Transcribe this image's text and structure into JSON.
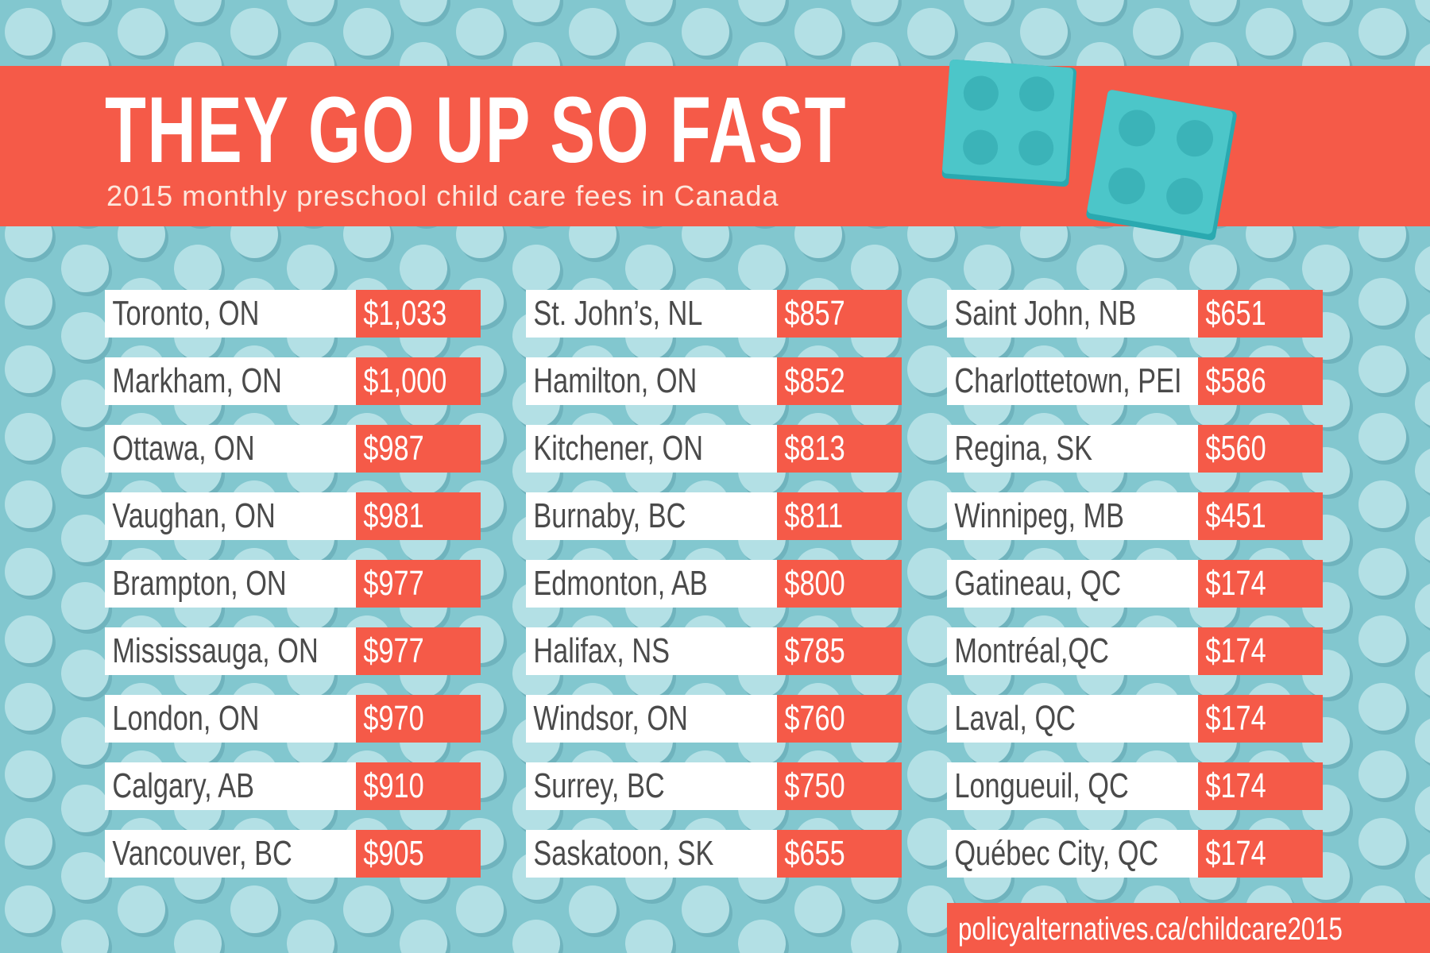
{
  "header": {
    "title": "THEY GO UP SO FAST",
    "subtitle": "2015 monthly preschool child care fees in Canada"
  },
  "table": {
    "columns": [
      [
        {
          "city": "Toronto, ON",
          "fee": "$1,033"
        },
        {
          "city": "Markham, ON",
          "fee": "$1,000"
        },
        {
          "city": "Ottawa, ON",
          "fee": "$987"
        },
        {
          "city": "Vaughan, ON",
          "fee": "$981"
        },
        {
          "city": "Brampton, ON",
          "fee": "$977"
        },
        {
          "city": "Mississauga, ON",
          "fee": "$977"
        },
        {
          "city": "London, ON",
          "fee": "$970"
        },
        {
          "city": "Calgary, AB",
          "fee": "$910"
        },
        {
          "city": "Vancouver, BC",
          "fee": "$905"
        }
      ],
      [
        {
          "city": "St. John’s, NL",
          "fee": "$857"
        },
        {
          "city": "Hamilton, ON",
          "fee": "$852"
        },
        {
          "city": "Kitchener, ON",
          "fee": "$813"
        },
        {
          "city": "Burnaby, BC",
          "fee": "$811"
        },
        {
          "city": "Edmonton, AB",
          "fee": "$800"
        },
        {
          "city": "Halifax, NS",
          "fee": "$785"
        },
        {
          "city": "Windsor, ON",
          "fee": "$760"
        },
        {
          "city": "Surrey, BC",
          "fee": "$750"
        },
        {
          "city": "Saskatoon, SK",
          "fee": "$655"
        }
      ],
      [
        {
          "city": "Saint John, NB",
          "fee": "$651"
        },
        {
          "city": "Charlottetown, PEI",
          "fee": "$586"
        },
        {
          "city": "Regina, SK",
          "fee": "$560"
        },
        {
          "city": "Winnipeg, MB",
          "fee": "$451"
        },
        {
          "city": "Gatineau, QC",
          "fee": "$174"
        },
        {
          "city": "Montréal,QC",
          "fee": "$174"
        },
        {
          "city": "Laval, QC",
          "fee": "$174"
        },
        {
          "city": "Longueuil, QC",
          "fee": "$174"
        },
        {
          "city": "Québec City, QC",
          "fee": "$174"
        }
      ]
    ]
  },
  "footer": {
    "url": "policyalternatives.ca/childcare2015"
  }
}
